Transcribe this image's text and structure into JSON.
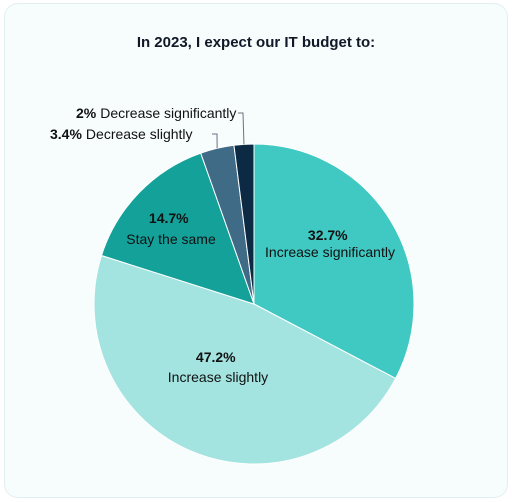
{
  "chart_data": {
    "type": "pie",
    "title": "In 2023, I expect our IT budget to:",
    "slices": [
      {
        "label": "Increase significantly",
        "value": 32.7,
        "pct_text": "32.7%",
        "color": "#40c8c2"
      },
      {
        "label": "Increase slightly",
        "value": 47.2,
        "pct_text": "47.2%",
        "color": "#a3e4e1"
      },
      {
        "label": "Stay the same",
        "value": 14.7,
        "pct_text": "14.7%",
        "color": "#13a19a"
      },
      {
        "label": "Decrease slightly",
        "value": 3.4,
        "pct_text": "3.4%",
        "color": "#3f6b86"
      },
      {
        "label": "Decrease significantly",
        "value": 2.0,
        "pct_text": "2%",
        "color": "#0c2a44"
      }
    ],
    "start_angle_deg": 0,
    "direction": "clockwise"
  }
}
